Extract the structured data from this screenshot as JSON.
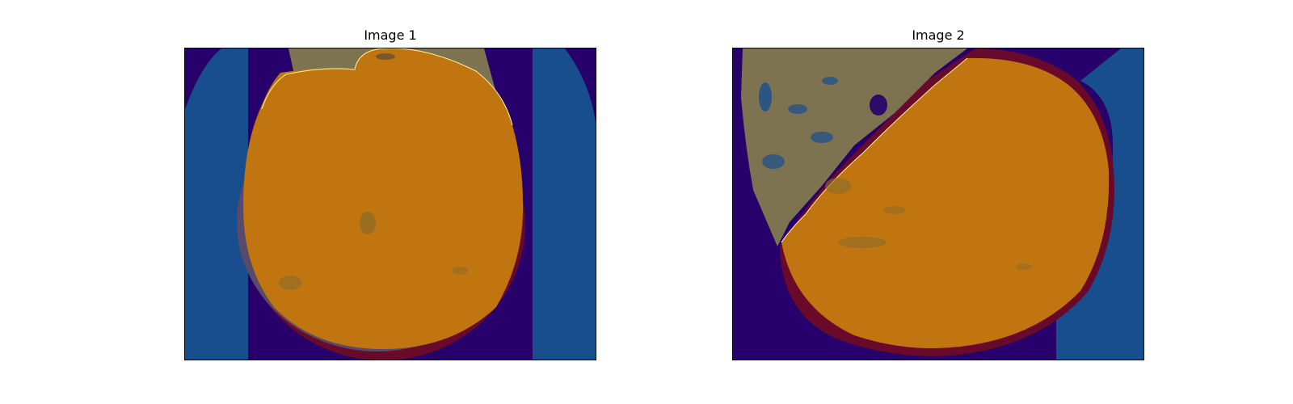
{
  "figure": {
    "panels": [
      {
        "title": "Image 1"
      },
      {
        "title": "Image 2"
      }
    ],
    "colors": {
      "background_dark": "#27006b",
      "background_blue": "#184e8e",
      "tissue_olive": "#7e7350",
      "overlay_orange": "#c17510",
      "overlay_dark_red": "#6a0a2a",
      "contour_yellow": "#fff59a"
    }
  }
}
